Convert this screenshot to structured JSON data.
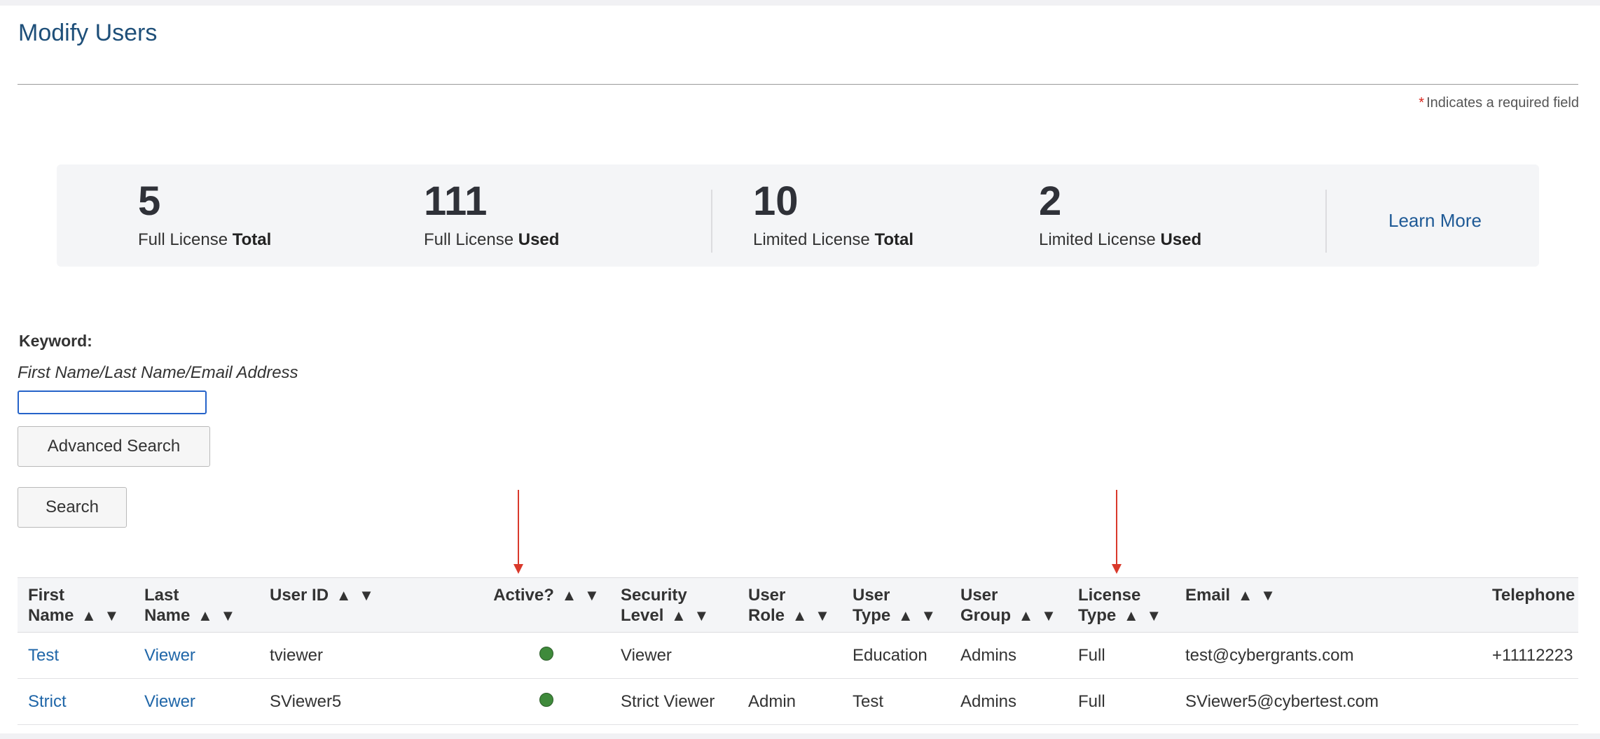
{
  "header": {
    "title": "Modify Users",
    "required_star": "*",
    "required_note": "Indicates a required field"
  },
  "licenses": {
    "stats": [
      {
        "value": "5",
        "label": "Full License ",
        "label_bold": "Total"
      },
      {
        "value": "111",
        "label": "Full License ",
        "label_bold": "Used"
      },
      {
        "value": "10",
        "label": "Limited License ",
        "label_bold": "Total"
      },
      {
        "value": "2",
        "label": "Limited License ",
        "label_bold": "Used"
      }
    ],
    "learn_more": "Learn More"
  },
  "search": {
    "keyword_label": "Keyword:",
    "keyword_hint": "First Name/Last Name/Email Address",
    "keyword_value": "",
    "advanced_label": "Advanced Search",
    "search_label": "Search"
  },
  "table": {
    "columns": [
      {
        "line1": "First",
        "line2": "Name"
      },
      {
        "line1": "Last",
        "line2": "Name"
      },
      {
        "line1": "User ID",
        "line2": ""
      },
      {
        "line1": "Active?",
        "line2": ""
      },
      {
        "line1": "Security",
        "line2": "Level"
      },
      {
        "line1": "User",
        "line2": "Role"
      },
      {
        "line1": "User",
        "line2": "Type"
      },
      {
        "line1": "User",
        "line2": "Group"
      },
      {
        "line1": "License",
        "line2": "Type"
      },
      {
        "line1": "Email",
        "line2": ""
      },
      {
        "line1": "Telephone",
        "line2": ""
      }
    ],
    "sort_up": "▲",
    "sort_down": "▼",
    "rows": [
      {
        "first_name": "Test",
        "last_name": "Viewer",
        "user_id": "tviewer",
        "active": true,
        "security_level": "Viewer",
        "user_role": "",
        "user_type": "Education",
        "user_group": "Admins",
        "license_type": "Full",
        "email": "test@cybergrants.com",
        "telephone": "+11112223"
      },
      {
        "first_name": "Strict",
        "last_name": "Viewer",
        "user_id": "SViewer5",
        "active": true,
        "security_level": "Strict Viewer",
        "user_role": "Admin",
        "user_type": "Test",
        "user_group": "Admins",
        "license_type": "Full",
        "email": "SViewer5@cybertest.com",
        "telephone": ""
      }
    ]
  },
  "colors": {
    "title": "#1e4f79",
    "link": "#1f66a8",
    "required_star": "#d9251c",
    "active_dot": "#3f8a3b",
    "annotation_arrow": "#d9392b",
    "input_focus": "#2563c9"
  }
}
